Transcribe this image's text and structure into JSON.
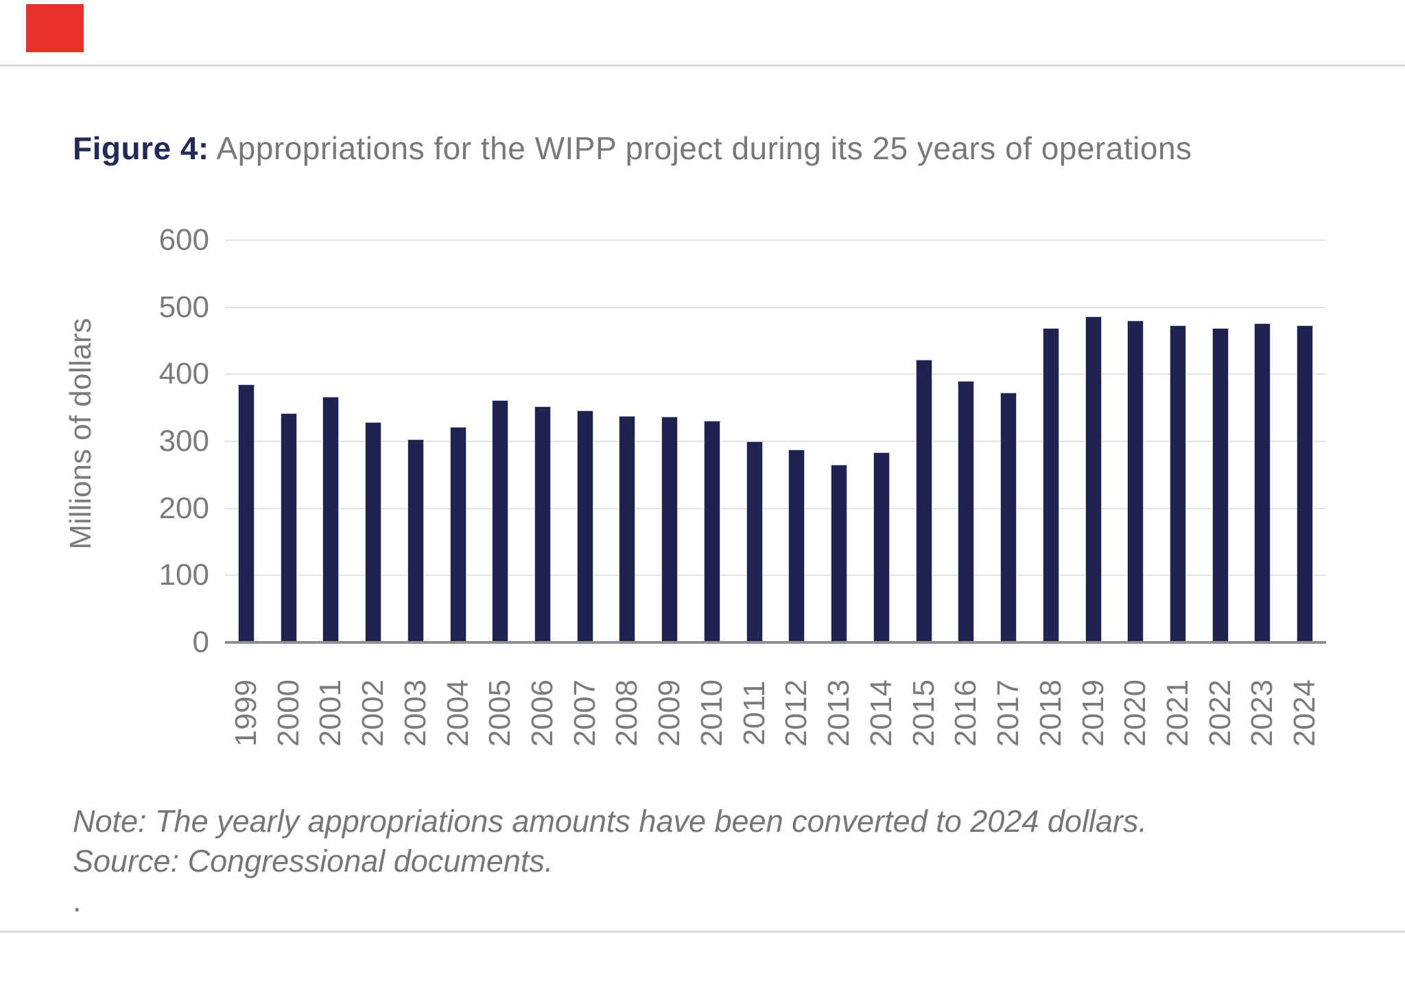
{
  "figure": {
    "title_prefix": "Figure 4:",
    "title_text": " Appropriations for the WIPP project during its 25 years of operations"
  },
  "note": {
    "line1": "Note: The yearly appropriations amounts have been converted to 2024 dollars.",
    "line2": "Source: Congressional documents.",
    "line3": "."
  },
  "chart_data": {
    "type": "bar",
    "title": "Figure 4: Appropriations for the WIPP project during its 25 years of operations",
    "categories": [
      "1999",
      "2000",
      "2001",
      "2002",
      "2003",
      "2004",
      "2005",
      "2006",
      "2007",
      "2008",
      "2009",
      "2010",
      "2011",
      "2012",
      "2013",
      "2014",
      "2015",
      "2016",
      "2017",
      "2018",
      "2019",
      "2020",
      "2021",
      "2022",
      "2023",
      "2024"
    ],
    "values": [
      385,
      342,
      367,
      329,
      303,
      322,
      361,
      352,
      346,
      338,
      337,
      331,
      300,
      288,
      265,
      284,
      422,
      390,
      373,
      469,
      486,
      480,
      473,
      469,
      476,
      473
    ],
    "xlabel": "",
    "ylabel": "Millions of dollars",
    "ylim": [
      0,
      600
    ],
    "yticks": [
      0,
      100,
      200,
      300,
      400,
      500,
      600
    ],
    "grid": true,
    "legend": "none"
  },
  "colors": {
    "bar": "#1f2350",
    "title_prefix": "#232a5a",
    "title_text": "#77787b",
    "axis_text": "#7b7b7b",
    "note_text": "#757679",
    "gridline": "#e4e4e4",
    "axis_line": "#8f8f8f",
    "divider": "#d6d6d6",
    "accent_red": "#e63128"
  }
}
